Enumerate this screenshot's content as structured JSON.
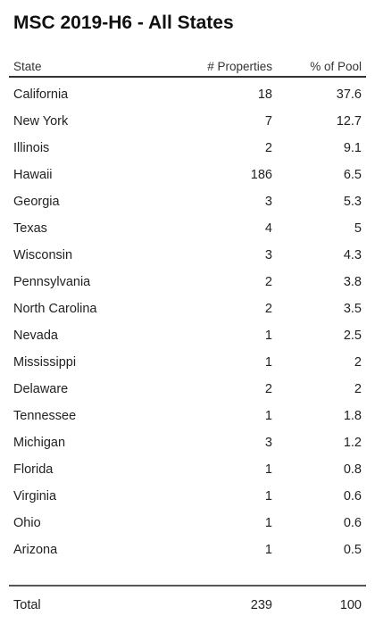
{
  "title": "MSC 2019-H6 - All States",
  "columns": {
    "state": "State",
    "properties": "# Properties",
    "pool": "% of Pool"
  },
  "rows": [
    {
      "state": "California",
      "properties": "18",
      "pool": "37.6"
    },
    {
      "state": "New York",
      "properties": "7",
      "pool": "12.7"
    },
    {
      "state": "Illinois",
      "properties": "2",
      "pool": "9.1"
    },
    {
      "state": "Hawaii",
      "properties": "186",
      "pool": "6.5"
    },
    {
      "state": "Georgia",
      "properties": "3",
      "pool": "5.3"
    },
    {
      "state": "Texas",
      "properties": "4",
      "pool": "5"
    },
    {
      "state": "Wisconsin",
      "properties": "3",
      "pool": "4.3"
    },
    {
      "state": "Pennsylvania",
      "properties": "2",
      "pool": "3.8"
    },
    {
      "state": "North Carolina",
      "properties": "2",
      "pool": "3.5"
    },
    {
      "state": "Nevada",
      "properties": "1",
      "pool": "2.5"
    },
    {
      "state": "Mississippi",
      "properties": "1",
      "pool": "2"
    },
    {
      "state": "Delaware",
      "properties": "2",
      "pool": "2"
    },
    {
      "state": "Tennessee",
      "properties": "1",
      "pool": "1.8"
    },
    {
      "state": "Michigan",
      "properties": "3",
      "pool": "1.2"
    },
    {
      "state": "Florida",
      "properties": "1",
      "pool": "0.8"
    },
    {
      "state": "Virginia",
      "properties": "1",
      "pool": "0.6"
    },
    {
      "state": "Ohio",
      "properties": "1",
      "pool": "0.6"
    },
    {
      "state": "Arizona",
      "properties": "1",
      "pool": "0.5"
    }
  ],
  "total": {
    "label": "Total",
    "properties": "239",
    "pool": "100"
  }
}
